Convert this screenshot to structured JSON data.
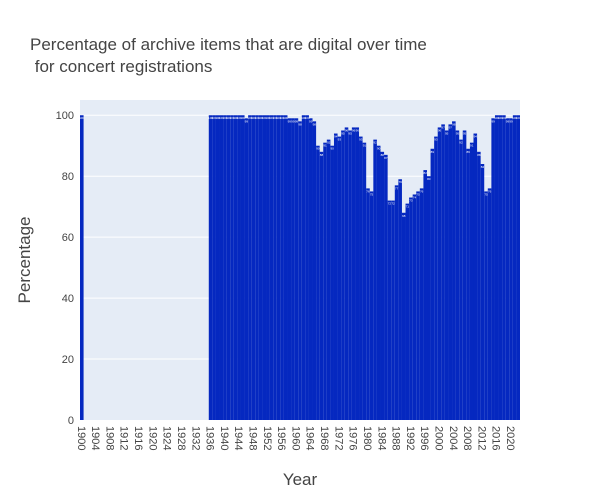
{
  "chart_data": {
    "type": "bar",
    "title_line1": "Percentage of archive items that are digital over time",
    "title_line2": " for concert registrations",
    "xlabel": "Year",
    "ylabel": "Percentage",
    "ylim": [
      0,
      105
    ],
    "y_ticks": [
      "0",
      "20",
      "40",
      "60",
      "80",
      "100"
    ],
    "x_ticks": [
      "1900",
      "1904",
      "1908",
      "1912",
      "1916",
      "1920",
      "1924",
      "1928",
      "1932",
      "1936",
      "1940",
      "1944",
      "1948",
      "1952",
      "1956",
      "1960",
      "1964",
      "1968",
      "1972",
      "1976",
      "1980",
      "1984",
      "1988",
      "1992",
      "1996",
      "2000",
      "2004",
      "2008",
      "2012",
      "2016",
      "2020"
    ],
    "grid": true,
    "colors": {
      "bar": "#0528c0",
      "plot_bg": "#e5ecf6",
      "grid": "#ffffff"
    },
    "x": [
      1900,
      1901,
      1902,
      1903,
      1904,
      1905,
      1906,
      1907,
      1908,
      1909,
      1910,
      1911,
      1912,
      1913,
      1914,
      1915,
      1916,
      1917,
      1918,
      1919,
      1920,
      1921,
      1922,
      1923,
      1924,
      1925,
      1926,
      1927,
      1928,
      1929,
      1930,
      1931,
      1932,
      1933,
      1934,
      1935,
      1936,
      1937,
      1938,
      1939,
      1940,
      1941,
      1942,
      1943,
      1944,
      1945,
      1946,
      1947,
      1948,
      1949,
      1950,
      1951,
      1952,
      1953,
      1954,
      1955,
      1956,
      1957,
      1958,
      1959,
      1960,
      1961,
      1962,
      1963,
      1964,
      1965,
      1966,
      1967,
      1968,
      1969,
      1970,
      1971,
      1972,
      1973,
      1974,
      1975,
      1976,
      1977,
      1978,
      1979,
      1980,
      1981,
      1982,
      1983,
      1984,
      1985,
      1986,
      1987,
      1988,
      1989,
      1990,
      1991,
      1992,
      1993,
      1994,
      1995,
      1996,
      1997,
      1998,
      1999,
      2000,
      2001,
      2002,
      2003,
      2004,
      2005,
      2006,
      2007,
      2008,
      2009,
      2010,
      2011,
      2012,
      2013,
      2014,
      2015,
      2016,
      2017,
      2018,
      2019,
      2020,
      2021,
      2022
    ],
    "values": [
      100,
      0,
      0,
      0,
      0,
      0,
      0,
      0,
      0,
      0,
      0,
      0,
      0,
      0,
      0,
      0,
      0,
      0,
      0,
      0,
      0,
      0,
      0,
      0,
      0,
      0,
      0,
      0,
      0,
      0,
      0,
      0,
      0,
      0,
      0,
      0,
      100,
      100,
      100,
      100,
      100,
      100,
      100,
      100,
      100,
      100,
      99,
      100,
      100,
      100,
      100,
      100,
      100,
      100,
      100,
      100,
      100,
      100,
      99,
      99,
      99,
      98,
      100,
      100,
      99,
      98,
      90,
      88,
      91,
      92,
      90,
      94,
      93,
      95,
      96,
      95,
      96,
      96,
      93,
      91,
      76,
      75,
      92,
      90,
      88,
      87,
      72,
      72,
      77,
      79,
      68,
      71,
      73,
      74,
      75,
      76,
      82,
      80,
      89,
      93,
      96,
      97,
      95,
      97,
      98,
      95,
      92,
      95,
      89,
      91,
      94,
      88,
      84,
      75,
      76,
      99,
      100,
      100,
      100,
      99,
      99,
      100,
      100
    ]
  }
}
